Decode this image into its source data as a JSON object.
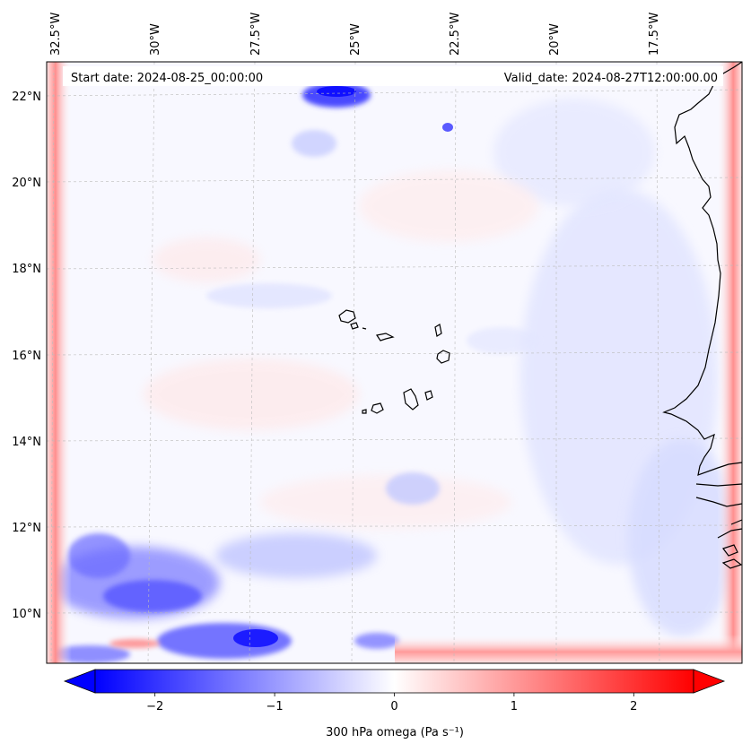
{
  "map": {
    "start_label": "Start date: 2024-08-25_00:00:00",
    "valid_label": "Valid_date: 2024-08-27T12:00:00.00",
    "lon_labels": [
      "32.5°W",
      "30°W",
      "27.5°W",
      "25°W",
      "22.5°W",
      "20°W",
      "17.5°W"
    ],
    "lat_labels": [
      "22°N",
      "20°N",
      "18°N",
      "16°N",
      "14°N",
      "12°N",
      "10°N"
    ],
    "grid": true,
    "projection_note": "",
    "colors": {
      "negative": "#0000ff",
      "positive": "#ff0000",
      "neutral": "#ffffff",
      "coast": "#000000",
      "grid": "#bbbbbb"
    }
  },
  "colorbar": {
    "label": "300 hPa omega (Pa s⁻¹)",
    "ticks": [
      "−2",
      "−1",
      "0",
      "1",
      "2"
    ],
    "tick_values": [
      -2,
      -1,
      0,
      1,
      2
    ],
    "range": [
      -2.5,
      2.5
    ],
    "extend": "both"
  }
}
